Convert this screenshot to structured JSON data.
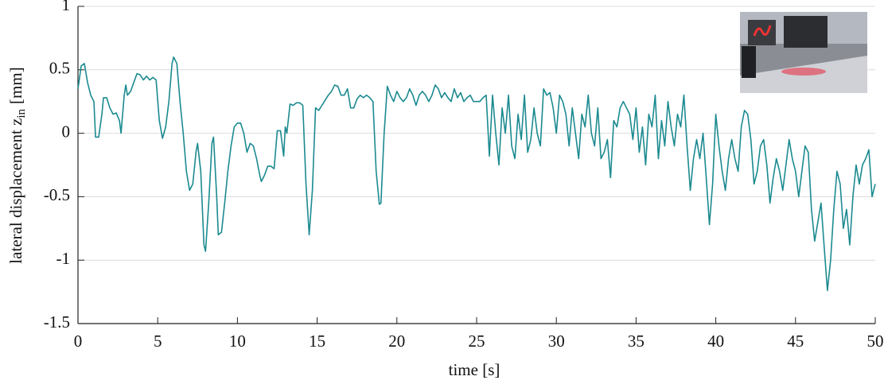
{
  "chart_data": {
    "type": "line",
    "xlabel": "time [s]",
    "ylabel": {
      "main": "lateral displacement z",
      "sub": "in",
      "unit": "[mm]"
    },
    "xlim": [
      0,
      50
    ],
    "xticks": [
      0,
      5,
      10,
      15,
      20,
      25,
      30,
      35,
      40,
      45,
      50
    ],
    "ylim": [
      -1.5,
      1
    ],
    "yticks": [
      1,
      0.5,
      0,
      -0.5,
      -1,
      -1.5
    ],
    "grid": true,
    "series": [
      {
        "color": "#1b8a90",
        "x": [
          0,
          0.2,
          0.4,
          0.6,
          0.8,
          1.0,
          1.1,
          1.3,
          1.5,
          1.6,
          1.8,
          2.0,
          2.2,
          2.4,
          2.6,
          2.7,
          2.9,
          3.0,
          3.1,
          3.3,
          3.5,
          3.7,
          3.9,
          4.1,
          4.3,
          4.5,
          4.7,
          4.9,
          5.1,
          5.3,
          5.5,
          5.7,
          5.9,
          6.0,
          6.2,
          6.4,
          6.6,
          6.8,
          7.0,
          7.2,
          7.4,
          7.5,
          7.7,
          7.9,
          8.0,
          8.2,
          8.4,
          8.5,
          8.7,
          8.8,
          9.0,
          9.2,
          9.4,
          9.6,
          9.8,
          10.0,
          10.2,
          10.4,
          10.6,
          10.8,
          11.0,
          11.2,
          11.4,
          11.5,
          11.7,
          11.9,
          12.1,
          12.3,
          12.5,
          12.7,
          12.9,
          13.0,
          13.1,
          13.3,
          13.5,
          13.7,
          13.9,
          14.1,
          14.3,
          14.5,
          14.7,
          14.9,
          15.1,
          15.3,
          15.5,
          15.7,
          15.9,
          16.1,
          16.3,
          16.5,
          16.7,
          16.9,
          17.1,
          17.3,
          17.5,
          17.7,
          17.9,
          18.1,
          18.3,
          18.5,
          18.7,
          18.9,
          19.0,
          19.2,
          19.4,
          19.6,
          19.8,
          20.0,
          20.2,
          20.4,
          20.6,
          20.8,
          21.0,
          21.2,
          21.4,
          21.6,
          21.8,
          22.0,
          22.2,
          22.4,
          22.6,
          22.8,
          23.0,
          23.2,
          23.4,
          23.6,
          23.8,
          24.0,
          24.2,
          24.4,
          24.6,
          24.8,
          25.0,
          25.2,
          25.4,
          25.6,
          25.8,
          26.0,
          26.2,
          26.4,
          26.6,
          26.8,
          27.0,
          27.2,
          27.4,
          27.6,
          27.8,
          28.0,
          28.2,
          28.4,
          28.6,
          28.8,
          29.0,
          29.2,
          29.4,
          29.6,
          29.8,
          30.0,
          30.2,
          30.4,
          30.6,
          30.8,
          31.0,
          31.2,
          31.4,
          31.6,
          31.8,
          32.0,
          32.2,
          32.4,
          32.6,
          32.8,
          33.0,
          33.2,
          33.4,
          33.6,
          33.8,
          34.0,
          34.2,
          34.4,
          34.6,
          34.8,
          35.0,
          35.2,
          35.4,
          35.6,
          35.8,
          36.0,
          36.2,
          36.4,
          36.6,
          36.8,
          37.0,
          37.2,
          37.4,
          37.6,
          37.8,
          38.0,
          38.2,
          38.4,
          38.6,
          38.8,
          39.0,
          39.2,
          39.4,
          39.6,
          39.8,
          40.0,
          40.2,
          40.4,
          40.6,
          40.8,
          41.0,
          41.2,
          41.4,
          41.6,
          41.8,
          42.0,
          42.2,
          42.4,
          42.6,
          42.8,
          43.0,
          43.2,
          43.4,
          43.6,
          43.8,
          44.0,
          44.2,
          44.4,
          44.6,
          44.8,
          45.0,
          45.2,
          45.4,
          45.6,
          45.8,
          46.0,
          46.2,
          46.4,
          46.6,
          46.8,
          47.0,
          47.2,
          47.4,
          47.6,
          47.8,
          48.0,
          48.2,
          48.4,
          48.6,
          48.8,
          49.0,
          49.2,
          49.4,
          49.6,
          49.8,
          50.0
        ],
        "values": [
          0.35,
          0.53,
          0.55,
          0.4,
          0.3,
          0.25,
          -0.03,
          -0.03,
          0.15,
          0.28,
          0.28,
          0.2,
          0.15,
          0.16,
          0.1,
          0.0,
          0.3,
          0.38,
          0.3,
          0.33,
          0.4,
          0.47,
          0.46,
          0.42,
          0.45,
          0.42,
          0.44,
          0.42,
          0.1,
          -0.04,
          0.05,
          0.25,
          0.55,
          0.6,
          0.55,
          0.25,
          0.0,
          -0.3,
          -0.45,
          -0.4,
          -0.15,
          -0.08,
          -0.3,
          -0.88,
          -0.93,
          -0.55,
          -0.08,
          -0.03,
          -0.5,
          -0.8,
          -0.78,
          -0.55,
          -0.3,
          -0.1,
          0.05,
          0.08,
          0.08,
          0.0,
          -0.15,
          -0.08,
          -0.1,
          -0.2,
          -0.33,
          -0.38,
          -0.33,
          -0.26,
          -0.26,
          -0.28,
          0.02,
          0.02,
          -0.18,
          0.05,
          0.0,
          0.23,
          0.22,
          0.24,
          0.24,
          0.22,
          -0.4,
          -0.8,
          -0.45,
          0.2,
          0.18,
          0.22,
          0.26,
          0.3,
          0.33,
          0.38,
          0.37,
          0.3,
          0.3,
          0.35,
          0.2,
          0.2,
          0.27,
          0.3,
          0.28,
          0.3,
          0.28,
          0.25,
          -0.3,
          -0.56,
          -0.55,
          0.0,
          0.37,
          0.3,
          0.25,
          0.33,
          0.28,
          0.25,
          0.28,
          0.35,
          0.3,
          0.22,
          0.3,
          0.33,
          0.3,
          0.25,
          0.3,
          0.38,
          0.35,
          0.28,
          0.32,
          0.28,
          0.25,
          0.35,
          0.28,
          0.32,
          0.25,
          0.28,
          0.3,
          0.25,
          0.25,
          0.25,
          0.28,
          0.3,
          -0.18,
          0.3,
          0.0,
          -0.25,
          0.2,
          0.0,
          0.3,
          -0.1,
          -0.2,
          0.15,
          -0.05,
          0.3,
          -0.15,
          -0.05,
          0.2,
          0.0,
          -0.1,
          0.35,
          0.3,
          0.32,
          0.2,
          0.0,
          0.3,
          0.25,
          0.15,
          -0.1,
          0.2,
          0.0,
          -0.2,
          0.15,
          0.05,
          0.3,
          0.0,
          -0.1,
          0.2,
          -0.2,
          -0.15,
          -0.05,
          -0.35,
          0.1,
          0.05,
          0.2,
          0.25,
          0.2,
          0.15,
          -0.05,
          0.2,
          -0.15,
          0.05,
          -0.25,
          0.15,
          0.05,
          0.3,
          -0.2,
          0.1,
          -0.1,
          0.25,
          0.05,
          -0.1,
          0.15,
          0.05,
          0.3,
          -0.1,
          -0.45,
          -0.2,
          -0.05,
          -0.2,
          0.0,
          -0.35,
          -0.72,
          -0.4,
          0.15,
          -0.1,
          -0.3,
          -0.45,
          -0.2,
          -0.05,
          -0.2,
          -0.3,
          0.05,
          0.18,
          0.15,
          -0.05,
          -0.4,
          -0.3,
          -0.1,
          -0.05,
          -0.25,
          -0.55,
          -0.35,
          -0.2,
          -0.3,
          -0.45,
          -0.25,
          -0.05,
          -0.2,
          -0.3,
          -0.5,
          -0.3,
          -0.1,
          -0.15,
          -0.6,
          -0.85,
          -0.7,
          -0.55,
          -0.9,
          -1.24,
          -1.0,
          -0.6,
          -0.3,
          -0.4,
          -0.75,
          -0.6,
          -0.88,
          -0.5,
          -0.25,
          -0.4,
          -0.25,
          -0.2,
          -0.13,
          -0.5,
          -0.4
        ]
      }
    ]
  }
}
